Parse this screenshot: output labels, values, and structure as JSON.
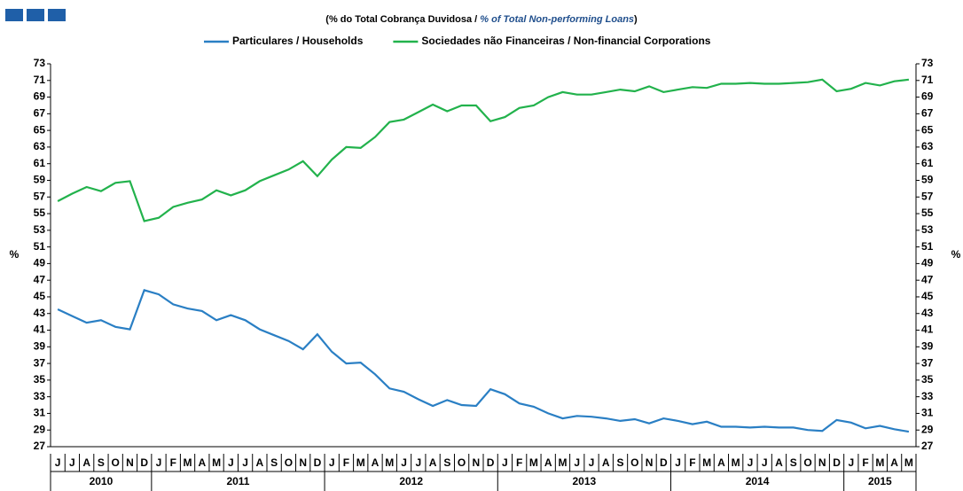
{
  "chart_data": {
    "type": "line",
    "subtitle": [
      "(% do Total Cobrança Duvidosa  / ",
      "% of Total Non-performing Loans",
      ")"
    ],
    "y_label": "%",
    "categories": [
      "J",
      "J",
      "A",
      "S",
      "O",
      "N",
      "D",
      "J",
      "F",
      "M",
      "A",
      "M",
      "J",
      "J",
      "A",
      "S",
      "O",
      "N",
      "D",
      "J",
      "F",
      "M",
      "A",
      "M",
      "J",
      "J",
      "A",
      "S",
      "O",
      "N",
      "D",
      "J",
      "F",
      "M",
      "A",
      "M",
      "J",
      "J",
      "A",
      "S",
      "O",
      "N",
      "D",
      "J",
      "F",
      "M",
      "A",
      "M",
      "J",
      "J",
      "A",
      "S",
      "O",
      "N",
      "D",
      "J",
      "F",
      "M",
      "A",
      "M"
    ],
    "years": [
      "2010",
      "2011",
      "2012",
      "2013",
      "2014",
      "2015"
    ],
    "series": [
      {
        "name": "Particulares / Households",
        "color": "#2a7fc4",
        "values": [
          43.5,
          42.7,
          41.9,
          42.2,
          41.4,
          41.1,
          45.8,
          45.3,
          44.1,
          43.6,
          43.3,
          42.2,
          42.8,
          42.2,
          41.1,
          40.4,
          39.7,
          38.7,
          40.5,
          38.4,
          37.0,
          37.1,
          35.7,
          34.0,
          33.6,
          32.7,
          31.9,
          32.6,
          32.0,
          31.9,
          33.9,
          33.3,
          32.2,
          31.8,
          31.0,
          30.4,
          30.7,
          30.6,
          30.4,
          30.1,
          30.3,
          29.8,
          30.4,
          30.1,
          29.7,
          30.0,
          29.4,
          29.4,
          29.3,
          29.4,
          29.3,
          29.3,
          29.0,
          28.9,
          30.2,
          29.9,
          29.2,
          29.5,
          29.1,
          28.8
        ]
      },
      {
        "name": "Sociedades não Financeiras / Non-financial Corporations",
        "color": "#22b24c",
        "values": [
          56.5,
          57.4,
          58.2,
          57.7,
          58.7,
          58.9,
          54.1,
          54.5,
          55.8,
          56.3,
          56.7,
          57.8,
          57.2,
          57.8,
          58.9,
          59.6,
          60.3,
          61.3,
          59.5,
          61.5,
          63.0,
          62.9,
          64.2,
          66.0,
          66.3,
          67.2,
          68.1,
          67.3,
          68.0,
          68.0,
          66.1,
          66.6,
          67.7,
          68.0,
          69.0,
          69.6,
          69.3,
          69.3,
          69.6,
          69.9,
          69.7,
          70.3,
          69.6,
          69.9,
          70.2,
          70.1,
          70.6,
          70.6,
          70.7,
          70.6,
          70.6,
          70.7,
          70.8,
          71.1,
          69.7,
          70.0,
          70.7,
          70.4,
          70.9,
          71.1
        ]
      }
    ],
    "ylim": [
      27,
      73
    ],
    "yticks": [
      27,
      29,
      31,
      33,
      35,
      37,
      39,
      41,
      43,
      45,
      47,
      49,
      51,
      53,
      55,
      57,
      59,
      61,
      63,
      65,
      67,
      69,
      71,
      73
    ]
  }
}
